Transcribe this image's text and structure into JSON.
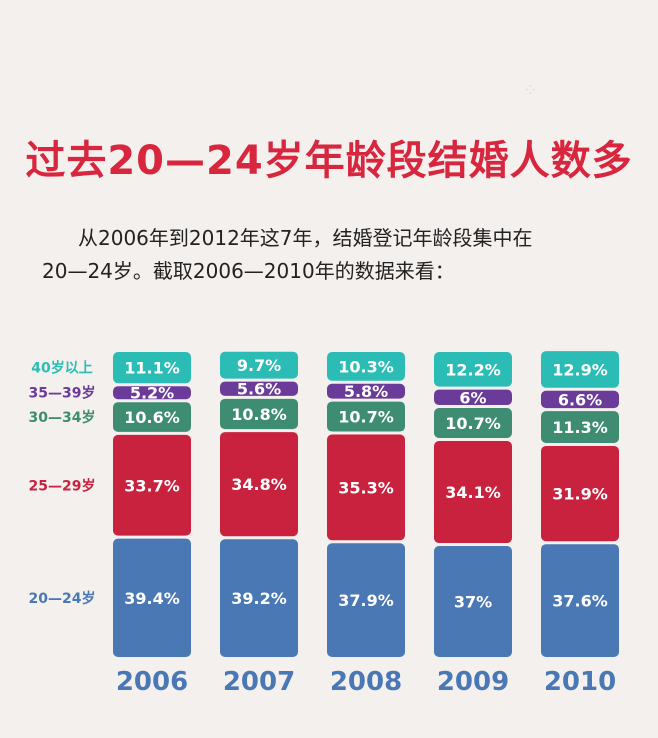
{
  "title": "过去20—24岁年龄段结婚人数多",
  "intro": {
    "line1": "从2006年到2012年这7年，结婚登记年龄段集中在",
    "line2": "20—24岁。截取2006—2010年的数据来看："
  },
  "colors": {
    "title": "#d7263d",
    "20-24": "#4a78b5",
    "25-29": "#c8223e",
    "30-34": "#3e8c72",
    "35-39": "#6a3b99",
    "40+": "#2bbdb5"
  },
  "chart_data": {
    "type": "bar",
    "stacked": true,
    "categories": [
      "2006",
      "2007",
      "2008",
      "2009",
      "2010"
    ],
    "series": [
      {
        "name": "20—24岁",
        "color": "#4a78b5",
        "values": [
          39.4,
          39.2,
          37.9,
          37,
          37.6
        ],
        "labels": [
          "39.4%",
          "39.2%",
          "37.9%",
          "37%",
          "37.6%"
        ]
      },
      {
        "name": "25—29岁",
        "color": "#c8223e",
        "values": [
          33.7,
          34.8,
          35.3,
          34.1,
          31.9
        ],
        "labels": [
          "33.7%",
          "34.8%",
          "35.3%",
          "34.1%",
          "31.9%"
        ]
      },
      {
        "name": "30—34岁",
        "color": "#3e8c72",
        "values": [
          10.6,
          10.8,
          10.7,
          10.7,
          11.3
        ],
        "labels": [
          "10.6%",
          "10.8%",
          "10.7%",
          "10.7%",
          "11.3%"
        ]
      },
      {
        "name": "35—39岁",
        "color": "#6a3b99",
        "values": [
          5.2,
          5.6,
          5.8,
          6,
          6.6
        ],
        "labels": [
          "5.2%",
          "5.6%",
          "5.8%",
          "6%",
          "6.6%"
        ]
      },
      {
        "name": "40岁以上",
        "color": "#2bbdb5",
        "values": [
          11.1,
          9.7,
          10.3,
          12.2,
          12.9
        ],
        "labels": [
          "11.1%",
          "9.7%",
          "10.3%",
          "12.2%",
          "12.9%"
        ]
      }
    ]
  }
}
